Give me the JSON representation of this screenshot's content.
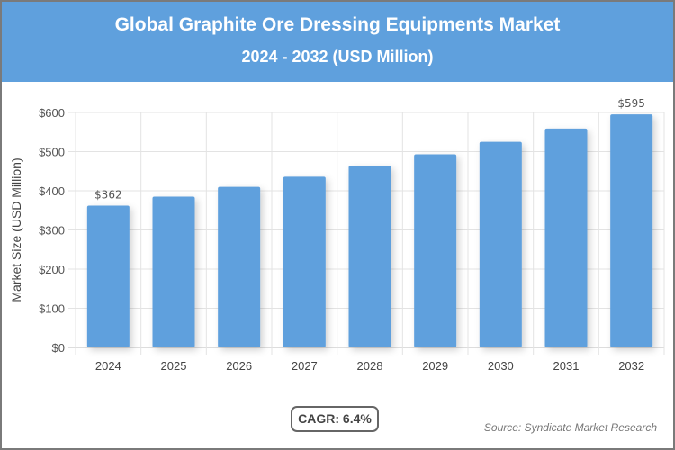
{
  "header": {
    "title": "Global Graphite Ore Dressing Equipments Market",
    "subtitle": "2024 - 2032 (USD Million)"
  },
  "chart_data": {
    "type": "bar",
    "categories": [
      "2024",
      "2025",
      "2026",
      "2027",
      "2028",
      "2029",
      "2030",
      "2031",
      "2032"
    ],
    "values": [
      362,
      385,
      410,
      436,
      464,
      493,
      525,
      559,
      595
    ],
    "data_labels": {
      "0": "$362",
      "8": "$595"
    },
    "ylabel": "Market Size (USD Million)",
    "xlabel": "",
    "ylim": [
      0,
      600
    ],
    "yticks": [
      "$0",
      "$100",
      "$200",
      "$300",
      "$400",
      "$500",
      "$600"
    ],
    "grid": true,
    "bar_color": "#5fa0dd"
  },
  "footer": {
    "cagr": "CAGR: 6.4%",
    "source": "Source: Syndicate Market Research"
  }
}
